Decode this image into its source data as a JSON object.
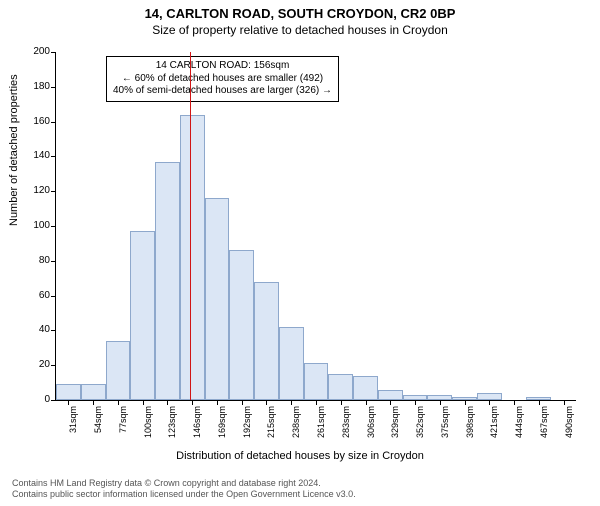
{
  "title": "14, CARLTON ROAD, SOUTH CROYDON, CR2 0BP",
  "subtitle": "Size of property relative to detached houses in Croydon",
  "chart": {
    "type": "histogram",
    "ylabel": "Number of detached properties",
    "xlabel": "Distribution of detached houses by size in Croydon",
    "ylim": [
      0,
      200
    ],
    "ytick_step": 20,
    "x_categories": [
      "31sqm",
      "54sqm",
      "77sqm",
      "100sqm",
      "123sqm",
      "146sqm",
      "169sqm",
      "192sqm",
      "215sqm",
      "238sqm",
      "261sqm",
      "283sqm",
      "306sqm",
      "329sqm",
      "352sqm",
      "375sqm",
      "398sqm",
      "421sqm",
      "444sqm",
      "467sqm",
      "490sqm"
    ],
    "values": [
      9,
      9,
      34,
      97,
      137,
      164,
      116,
      86,
      68,
      42,
      21,
      15,
      14,
      6,
      3,
      3,
      2,
      4,
      0,
      2,
      0
    ],
    "bar_fill": "#dbe6f5",
    "bar_border": "#8ea8cc",
    "background_color": "#ffffff",
    "marker_line_color": "#d11515",
    "marker_bin_index": 5,
    "marker_fraction_in_bin": 0.43,
    "annotation": {
      "line1": "14 CARLTON ROAD: 156sqm",
      "line2": "← 60% of detached houses are smaller (492)",
      "line3": "40% of semi-detached houses are larger (326) →"
    },
    "title_fontsize": 13,
    "label_fontsize": 11,
    "tick_fontsize": 10
  },
  "footer": {
    "line1": "Contains HM Land Registry data © Crown copyright and database right 2024.",
    "line2": "Contains public sector information licensed under the Open Government Licence v3.0."
  }
}
